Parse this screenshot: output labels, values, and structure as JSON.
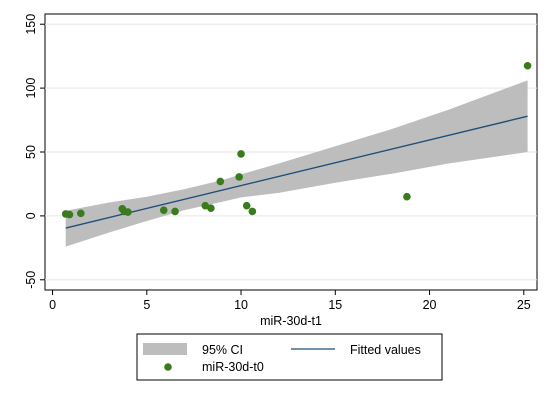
{
  "chart_data": {
    "type": "scatter",
    "xlabel": "miR-30d-t1",
    "ylabel": "",
    "xlim": [
      -0.4,
      25.7
    ],
    "ylim": [
      -58,
      158
    ],
    "x_ticks": [
      0,
      5,
      10,
      15,
      20,
      25
    ],
    "y_ticks": [
      -50,
      0,
      50,
      100,
      150
    ],
    "grid": "horizontal",
    "legend_position": "bottom",
    "series": [
      {
        "name": "miR-30d-t0",
        "kind": "scatter",
        "color": "#3a7b1e",
        "points": [
          [
            0.7,
            1.5
          ],
          [
            0.9,
            1.0
          ],
          [
            1.5,
            2.0
          ],
          [
            3.7,
            5.5
          ],
          [
            3.8,
            3.5
          ],
          [
            4.0,
            3.0
          ],
          [
            5.9,
            4.5
          ],
          [
            6.5,
            3.5
          ],
          [
            8.1,
            8.0
          ],
          [
            8.4,
            6.0
          ],
          [
            8.9,
            27.0
          ],
          [
            9.9,
            30.5
          ],
          [
            10.0,
            48.5
          ],
          [
            10.3,
            8.0
          ],
          [
            10.6,
            3.5
          ],
          [
            18.8,
            15.0
          ],
          [
            25.2,
            117.5
          ]
        ]
      },
      {
        "name": "Fitted values",
        "kind": "line",
        "color": "#1f4e79",
        "points": [
          [
            0.7,
            -9.5
          ],
          [
            25.2,
            78.0
          ]
        ]
      },
      {
        "name": "95% CI",
        "kind": "band",
        "color": "#bdbdbd",
        "x": [
          0.7,
          3,
          5,
          7,
          9,
          10,
          12,
          15,
          18,
          21,
          25.2
        ],
        "upper": [
          4.0,
          10.5,
          15.0,
          21.0,
          28.0,
          32.5,
          41.0,
          54.5,
          68.0,
          83.0,
          106.0
        ],
        "lower": [
          -24.0,
          -13.0,
          -4.0,
          4.5,
          11.0,
          14.5,
          18.0,
          26.0,
          33.0,
          41.0,
          50.0
        ]
      }
    ]
  },
  "legend": {
    "ci_label": "95% CI",
    "fitted_label": "Fitted values",
    "points_label": "miR-30d-t0"
  }
}
